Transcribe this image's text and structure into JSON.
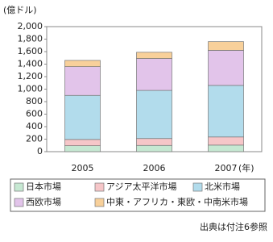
{
  "chart_data": {
    "type": "stacked-bar",
    "y_axis_label": "(億ドル)",
    "x_axis_label": "(年)",
    "source": "出典は付注6参照",
    "categories": [
      "2005",
      "2006",
      "2007"
    ],
    "series": [
      {
        "name": "日本市場",
        "color": "#c6e8d2",
        "values": [
          95,
          100,
          105
        ]
      },
      {
        "name": "アジア太平洋市場",
        "color": "#f6c6c8",
        "values": [
          100,
          110,
          130
        ]
      },
      {
        "name": "北米市場",
        "color": "#b2dcec",
        "values": [
          705,
          770,
          825
        ]
      },
      {
        "name": "西欧市場",
        "color": "#e2c4ea",
        "values": [
          460,
          510,
          560
        ]
      },
      {
        "name": "中東・アフリカ・東欧・中南米市場",
        "color": "#f8d09a",
        "values": [
          100,
          100,
          140
        ]
      }
    ],
    "ylim": [
      0,
      2000
    ],
    "yticks": [
      0,
      200,
      400,
      600,
      800,
      {
        "value": 1000,
        "label": "1,000"
      },
      {
        "value": 1200,
        "label": "1,200"
      },
      {
        "value": 1400,
        "label": "1,400"
      },
      {
        "value": 1600,
        "label": "1,600"
      },
      {
        "value": 1800,
        "label": "1,800"
      },
      {
        "value": 2000,
        "label": "2,000"
      }
    ],
    "grid": false
  }
}
